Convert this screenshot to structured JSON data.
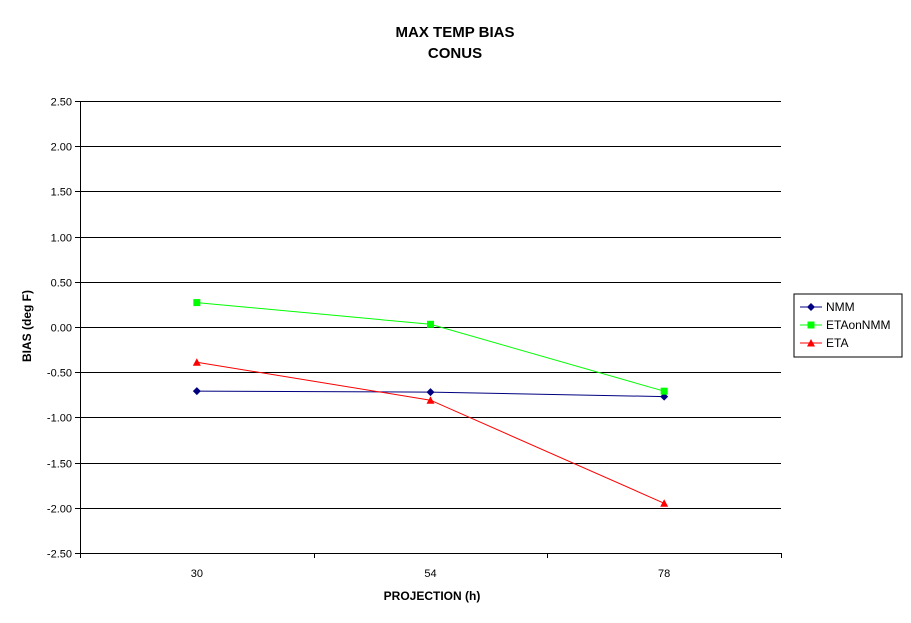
{
  "chart_data": {
    "type": "line",
    "title": "MAX TEMP BIAS",
    "subtitle": "CONUS",
    "xlabel": "PROJECTION (h)",
    "ylabel": "BIAS (deg F)",
    "categories": [
      "30",
      "54",
      "78"
    ],
    "ylim": [
      -2.5,
      2.5
    ],
    "ytick_step": 0.5,
    "ytick_labels": [
      "2.50",
      "2.00",
      "1.50",
      "1.00",
      "0.50",
      "0.00",
      "-0.50",
      "-1.00",
      "-1.50",
      "-2.00",
      "-2.50"
    ],
    "grid": true,
    "legend_position": "right",
    "series": [
      {
        "name": "NMM",
        "values": [
          -0.71,
          -0.72,
          -0.77
        ],
        "color": "#000080",
        "marker": "diamond"
      },
      {
        "name": "ETAonNMM",
        "values": [
          0.27,
          0.03,
          -0.71
        ],
        "color": "#00ff00",
        "marker": "square"
      },
      {
        "name": "ETA",
        "values": [
          -0.39,
          -0.81,
          -1.95
        ],
        "color": "#ff0000",
        "marker": "triangle"
      }
    ]
  }
}
